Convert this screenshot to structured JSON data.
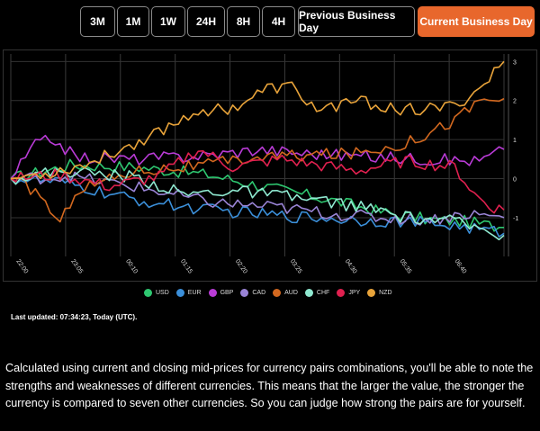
{
  "tabs": [
    {
      "label": "3M",
      "active": false
    },
    {
      "label": "1M",
      "active": false
    },
    {
      "label": "1W",
      "active": false
    },
    {
      "label": "24H",
      "active": false
    },
    {
      "label": "8H",
      "active": false
    },
    {
      "label": "4H",
      "active": false
    },
    {
      "label": "Previous Business Day",
      "active": false
    },
    {
      "label": "Current Business Day",
      "active": true
    }
  ],
  "accent_color": "#e8672c",
  "chart_data": {
    "type": "line",
    "title": "",
    "xlabel": "",
    "ylabel": "",
    "x_ticks": [
      "22:00",
      "23:05",
      "00:10",
      "01:15",
      "02:20",
      "03:25",
      "04:30",
      "05:35",
      "06:40"
    ],
    "y_ticks": [
      3,
      2,
      1,
      0,
      -1
    ],
    "ylim": [
      -1.9,
      3.1
    ],
    "points": 100,
    "series": [
      {
        "name": "USD",
        "color": "#2ec770",
        "keys": [
          [
            0,
            0
          ],
          [
            12,
            0.35
          ],
          [
            25,
            0.3
          ],
          [
            40,
            0.1
          ],
          [
            55,
            -0.3
          ],
          [
            65,
            -0.55
          ],
          [
            75,
            -0.85
          ],
          [
            85,
            -1.05
          ],
          [
            92,
            -1.1
          ],
          [
            100,
            -1.25
          ]
        ]
      },
      {
        "name": "EUR",
        "color": "#3b8fd9",
        "keys": [
          [
            0,
            0
          ],
          [
            10,
            -0.1
          ],
          [
            25,
            -0.55
          ],
          [
            40,
            -0.8
          ],
          [
            55,
            -0.95
          ],
          [
            70,
            -1.05
          ],
          [
            80,
            -1.1
          ],
          [
            90,
            -1.2
          ],
          [
            100,
            -1.4
          ]
        ]
      },
      {
        "name": "GBP",
        "color": "#b93bd6",
        "keys": [
          [
            0,
            0
          ],
          [
            5,
            0.9
          ],
          [
            9,
            1.0
          ],
          [
            13,
            0.55
          ],
          [
            25,
            0.5
          ],
          [
            40,
            0.6
          ],
          [
            50,
            0.75
          ],
          [
            60,
            0.65
          ],
          [
            75,
            0.55
          ],
          [
            85,
            0.5
          ],
          [
            95,
            0.45
          ],
          [
            100,
            0.75
          ]
        ]
      },
      {
        "name": "CAD",
        "color": "#9a84d6",
        "keys": [
          [
            0,
            0
          ],
          [
            12,
            0.05
          ],
          [
            25,
            -0.2
          ],
          [
            40,
            -0.6
          ],
          [
            55,
            -0.75
          ],
          [
            65,
            -0.9
          ],
          [
            75,
            -1.0
          ],
          [
            85,
            -1.05
          ],
          [
            93,
            -0.9
          ],
          [
            100,
            -1.0
          ]
        ]
      },
      {
        "name": "AUD",
        "color": "#d2681f",
        "keys": [
          [
            0,
            0
          ],
          [
            6,
            -0.4
          ],
          [
            10,
            -1.2
          ],
          [
            13,
            -0.3
          ],
          [
            25,
            0.2
          ],
          [
            40,
            0.35
          ],
          [
            50,
            0.55
          ],
          [
            60,
            0.6
          ],
          [
            70,
            0.65
          ],
          [
            80,
            0.9
          ],
          [
            90,
            1.5
          ],
          [
            95,
            2.0
          ],
          [
            100,
            2.05
          ]
        ]
      },
      {
        "name": "CHF",
        "color": "#8fe8d0",
        "keys": [
          [
            0,
            0
          ],
          [
            10,
            0.2
          ],
          [
            25,
            0.05
          ],
          [
            35,
            -0.4
          ],
          [
            45,
            -0.3
          ],
          [
            55,
            -0.45
          ],
          [
            65,
            -0.6
          ],
          [
            72,
            -0.75
          ],
          [
            80,
            -1.0
          ],
          [
            90,
            -1.1
          ],
          [
            100,
            -1.45
          ]
        ]
      },
      {
        "name": "JPY",
        "color": "#e0204f",
        "keys": [
          [
            0,
            0
          ],
          [
            10,
            0.1
          ],
          [
            20,
            -0.2
          ],
          [
            30,
            0.05
          ],
          [
            38,
            0.75
          ],
          [
            45,
            0.3
          ],
          [
            55,
            0.5
          ],
          [
            62,
            0.35
          ],
          [
            70,
            0.2
          ],
          [
            80,
            0.45
          ],
          [
            90,
            0.3
          ],
          [
            94,
            -0.4
          ],
          [
            97,
            -0.7
          ],
          [
            100,
            -0.8
          ]
        ]
      },
      {
        "name": "NZD",
        "color": "#e8a33a",
        "keys": [
          [
            0,
            0
          ],
          [
            8,
            0.15
          ],
          [
            15,
            0.35
          ],
          [
            25,
            0.9
          ],
          [
            30,
            1.2
          ],
          [
            38,
            1.75
          ],
          [
            45,
            1.8
          ],
          [
            52,
            2.3
          ],
          [
            57,
            2.35
          ],
          [
            62,
            1.75
          ],
          [
            70,
            2.0
          ],
          [
            77,
            1.8
          ],
          [
            83,
            1.75
          ],
          [
            90,
            1.85
          ],
          [
            95,
            2.3
          ],
          [
            100,
            3.0
          ]
        ]
      }
    ]
  },
  "last_updated": "Last updated: 07:34:23, Today (UTC).",
  "description": "Calculated using current and closing mid-prices for currency pairs combinations, you'll be able to note the strengths and weaknesses of different currencies. This means that the larger the value, the stronger the currency is compared to seven other currencies. So you can judge how strong the pairs are for yourself."
}
